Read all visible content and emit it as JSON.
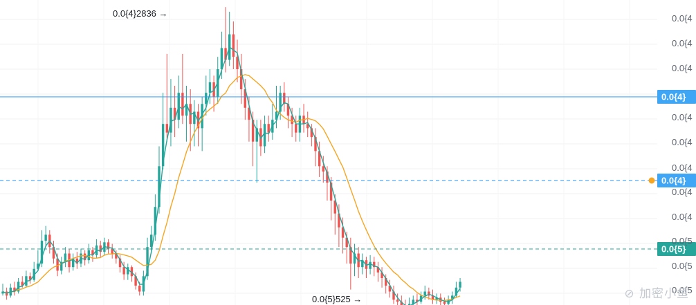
{
  "chart_data": {
    "type": "candlestick",
    "y_scale": "log",
    "grid": true,
    "colors": {
      "up": "#26a69a",
      "down": "#ef5350",
      "ma_fast": "#26a69a",
      "ma_slow": "#f5a623",
      "h_line": "#2196f3",
      "last_price": "#26a69a",
      "orange_marker": "#f5a623"
    },
    "y_ticks": [
      "0.0{4",
      "0.0{4",
      "0.0{4",
      "0.0{4",
      "0.0{4",
      "0.0{4",
      "0.0{4",
      "0.0{4",
      "0.0{5",
      "0.0{5",
      "0.0{5"
    ],
    "annotations": {
      "high": "0.0{4}2836 →",
      "low": "0.0{5}525 →"
    },
    "price_badges": [
      {
        "label": "0.0{4}",
        "kind": "h-line",
        "style": "solid"
      },
      {
        "label": "0.0{4}",
        "kind": "h-line",
        "style": "dashed"
      },
      {
        "label": "0.0{5}",
        "kind": "last-price",
        "style": "dashed"
      }
    ],
    "candles": [
      [
        0.96,
        0.97,
        1.01,
        0.95
      ],
      [
        0.97,
        0.95,
        0.99,
        0.93
      ],
      [
        0.95,
        0.99,
        1.01,
        0.94
      ],
      [
        0.99,
        0.97,
        1.02,
        0.95
      ],
      [
        0.97,
        1.02,
        1.04,
        0.96
      ],
      [
        1.02,
        1.0,
        1.05,
        0.99
      ],
      [
        1.0,
        1.05,
        1.08,
        0.99
      ],
      [
        1.05,
        1.03,
        1.07,
        1.01
      ],
      [
        1.03,
        1.09,
        1.13,
        1.02
      ],
      [
        1.09,
        1.12,
        1.2,
        1.08
      ],
      [
        1.12,
        1.26,
        1.33,
        1.1
      ],
      [
        1.26,
        1.3,
        1.36,
        1.22
      ],
      [
        1.3,
        1.22,
        1.33,
        1.18
      ],
      [
        1.22,
        1.15,
        1.26,
        1.12
      ],
      [
        1.15,
        1.08,
        1.18,
        1.05
      ],
      [
        1.08,
        1.13,
        1.16,
        1.06
      ],
      [
        1.13,
        1.18,
        1.22,
        1.1
      ],
      [
        1.18,
        1.1,
        1.21,
        1.07
      ],
      [
        1.1,
        1.15,
        1.18,
        1.08
      ],
      [
        1.15,
        1.12,
        1.19,
        1.09
      ],
      [
        1.12,
        1.18,
        1.21,
        1.1
      ],
      [
        1.18,
        1.14,
        1.2,
        1.11
      ],
      [
        1.14,
        1.2,
        1.24,
        1.12
      ],
      [
        1.2,
        1.17,
        1.22,
        1.13
      ],
      [
        1.17,
        1.23,
        1.27,
        1.15
      ],
      [
        1.23,
        1.19,
        1.26,
        1.16
      ],
      [
        1.19,
        1.25,
        1.28,
        1.17
      ],
      [
        1.25,
        1.21,
        1.27,
        1.18
      ],
      [
        1.21,
        1.18,
        1.24,
        1.15
      ],
      [
        1.18,
        1.15,
        1.2,
        1.12
      ],
      [
        1.15,
        1.1,
        1.17,
        1.07
      ],
      [
        1.1,
        1.06,
        1.13,
        1.03
      ],
      [
        1.06,
        1.1,
        1.12,
        1.03
      ],
      [
        1.1,
        1.05,
        1.11,
        1.02
      ],
      [
        1.05,
        1.0,
        1.07,
        0.98
      ],
      [
        1.0,
        0.97,
        1.02,
        0.95
      ],
      [
        0.97,
        1.05,
        1.08,
        0.95
      ],
      [
        1.05,
        1.22,
        1.28,
        1.03
      ],
      [
        1.22,
        1.3,
        1.36,
        1.18
      ],
      [
        1.3,
        1.5,
        1.6,
        1.26
      ],
      [
        1.5,
        1.85,
        2.05,
        1.45
      ],
      [
        1.85,
        2.3,
        2.7,
        1.82
      ],
      [
        2.3,
        2.2,
        3.3,
        2.1
      ],
      [
        2.2,
        2.5,
        2.9,
        2.05
      ],
      [
        2.5,
        2.35,
        2.8,
        2.15
      ],
      [
        2.35,
        2.7,
        2.95,
        2.25
      ],
      [
        2.7,
        2.4,
        3.3,
        2.3
      ],
      [
        2.4,
        2.55,
        2.8,
        2.1
      ],
      [
        2.55,
        2.3,
        2.75,
        2.0
      ],
      [
        2.3,
        2.45,
        2.6,
        2.05
      ],
      [
        2.45,
        2.25,
        2.55,
        2.05
      ],
      [
        2.25,
        2.55,
        2.65,
        2.0
      ],
      [
        2.55,
        2.7,
        2.95,
        2.4
      ],
      [
        2.7,
        2.85,
        3.05,
        2.55
      ],
      [
        2.85,
        2.65,
        2.95,
        2.45
      ],
      [
        2.65,
        3.05,
        3.25,
        2.55
      ],
      [
        3.05,
        3.4,
        3.7,
        2.9
      ],
      [
        3.4,
        3.2,
        4.2,
        3.0
      ],
      [
        3.2,
        3.65,
        4.1,
        3.1
      ],
      [
        3.65,
        3.25,
        3.9,
        3.05
      ],
      [
        3.25,
        3.05,
        3.55,
        2.85
      ],
      [
        3.05,
        2.75,
        3.3,
        2.55
      ],
      [
        2.75,
        2.5,
        2.9,
        2.35
      ],
      [
        2.5,
        2.35,
        2.65,
        2.1
      ],
      [
        2.35,
        2.1,
        2.45,
        1.85
      ],
      [
        2.1,
        2.25,
        2.35,
        1.7
      ],
      [
        2.25,
        2.05,
        2.35,
        1.95
      ],
      [
        2.05,
        2.3,
        2.4,
        1.98
      ],
      [
        2.3,
        2.2,
        2.4,
        2.1
      ],
      [
        2.2,
        2.35,
        2.55,
        2.12
      ],
      [
        2.35,
        2.45,
        2.8,
        2.25
      ],
      [
        2.45,
        2.7,
        2.8,
        2.35
      ],
      [
        2.7,
        2.55,
        2.85,
        2.45
      ],
      [
        2.55,
        2.4,
        2.65,
        2.25
      ],
      [
        2.4,
        2.3,
        2.5,
        2.15
      ],
      [
        2.3,
        2.2,
        2.4,
        2.1
      ],
      [
        2.2,
        2.4,
        2.5,
        2.1
      ],
      [
        2.4,
        2.3,
        2.55,
        2.2
      ],
      [
        2.3,
        2.25,
        2.45,
        2.15
      ],
      [
        2.25,
        2.15,
        2.3,
        2.05
      ],
      [
        2.15,
        2.0,
        2.25,
        1.85
      ],
      [
        2.0,
        1.85,
        2.1,
        1.75
      ],
      [
        1.85,
        1.8,
        1.95,
        1.7
      ],
      [
        1.8,
        1.7,
        1.85,
        1.55
      ],
      [
        1.7,
        1.55,
        1.75,
        1.4
      ],
      [
        1.55,
        1.45,
        1.6,
        1.3
      ],
      [
        1.45,
        1.35,
        1.52,
        1.22
      ],
      [
        1.35,
        1.28,
        1.42,
        1.18
      ],
      [
        1.28,
        1.22,
        1.32,
        1.12
      ],
      [
        1.22,
        1.12,
        1.28,
        0.98
      ],
      [
        1.12,
        1.18,
        1.24,
        1.05
      ],
      [
        1.18,
        1.1,
        1.22,
        1.04
      ],
      [
        1.1,
        1.14,
        1.18,
        1.06
      ],
      [
        1.14,
        1.09,
        1.16,
        1.04
      ],
      [
        1.09,
        1.13,
        1.17,
        1.06
      ],
      [
        1.13,
        1.1,
        1.16,
        1.05
      ],
      [
        1.1,
        1.07,
        1.13,
        1.02
      ],
      [
        1.07,
        1.04,
        1.1,
        0.99
      ],
      [
        1.04,
        1.0,
        1.06,
        0.96
      ],
      [
        1.0,
        0.97,
        1.03,
        0.94
      ],
      [
        0.97,
        0.93,
        1.0,
        0.91
      ],
      [
        0.93,
        0.92,
        0.96,
        0.89
      ],
      [
        0.92,
        0.9,
        0.95,
        0.88
      ],
      [
        0.9,
        0.89,
        0.93,
        0.87
      ],
      [
        0.89,
        0.91,
        0.94,
        0.88
      ],
      [
        0.91,
        0.93,
        0.95,
        0.89
      ],
      [
        0.93,
        0.92,
        0.96,
        0.9
      ],
      [
        0.92,
        0.95,
        0.97,
        0.91
      ],
      [
        0.95,
        0.97,
        1.0,
        0.93
      ],
      [
        0.97,
        0.95,
        0.99,
        0.93
      ],
      [
        0.95,
        0.93,
        0.98,
        0.91
      ],
      [
        0.93,
        0.94,
        0.96,
        0.91
      ],
      [
        0.94,
        0.92,
        0.96,
        0.9
      ],
      [
        0.92,
        0.91,
        0.94,
        0.89
      ],
      [
        0.91,
        0.93,
        0.95,
        0.89
      ],
      [
        0.93,
        0.95,
        0.97,
        0.91
      ],
      [
        0.95,
        0.99,
        1.02,
        0.94
      ],
      [
        0.99,
        1.02,
        1.04,
        0.97
      ]
    ]
  }
}
